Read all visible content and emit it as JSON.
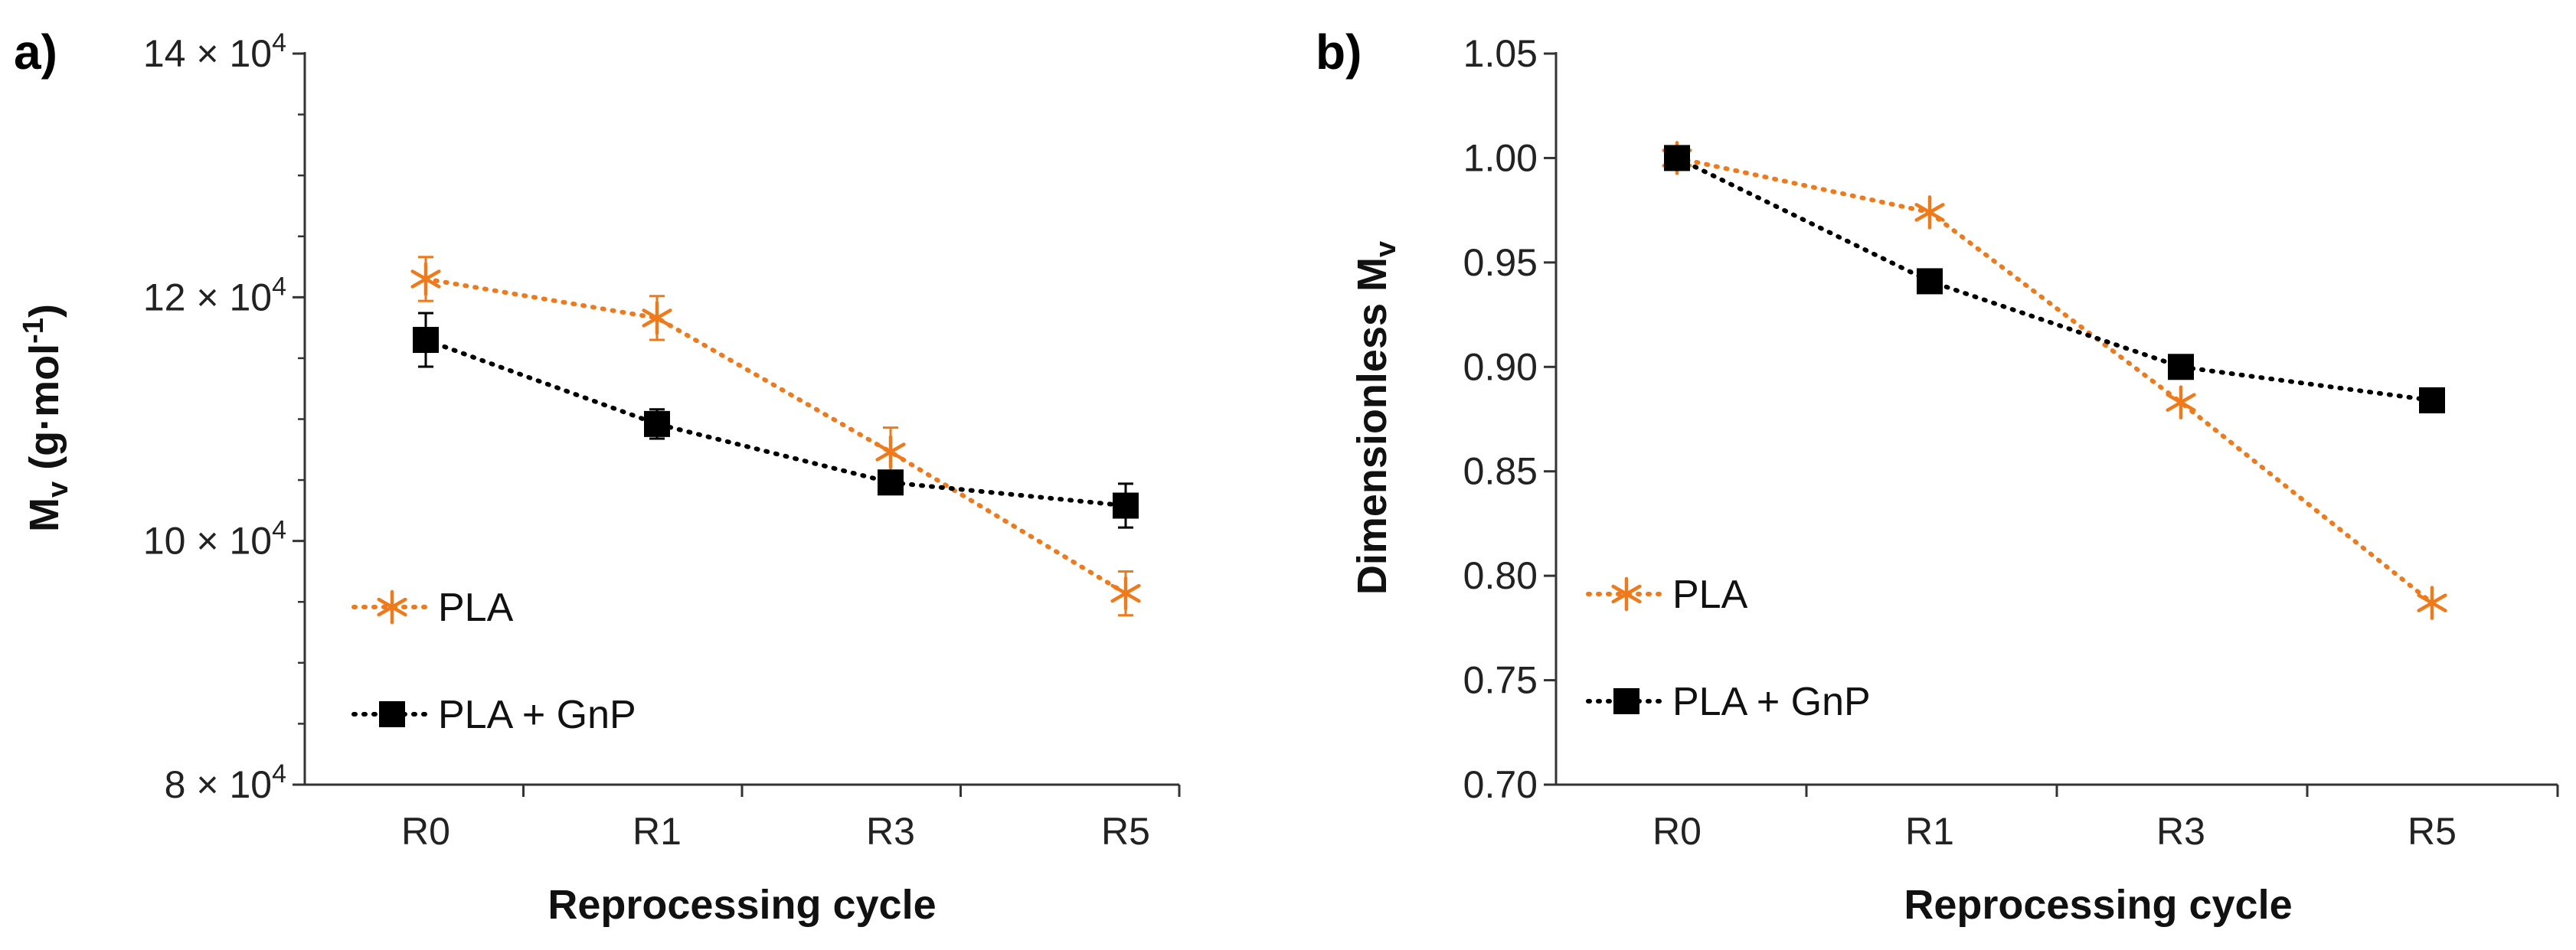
{
  "chart_data": [
    {
      "panel": "a)",
      "type": "line",
      "categories": [
        "R0",
        "R1",
        "R3",
        "R5"
      ],
      "xlabel": "Reprocessing cycle",
      "ylabel": "Mv (g·mol-1)",
      "ylabel_parts": {
        "main": "M",
        "sub": "v",
        "rest": " (g·mol",
        "sup": "-1",
        "close": ")"
      },
      "ylim": [
        80000,
        140000
      ],
      "yticks": [
        {
          "value": 80000,
          "mantissa": "8 × 10",
          "exp": "4"
        },
        {
          "value": 100000,
          "mantissa": "10 × 10",
          "exp": "4"
        },
        {
          "value": 120000,
          "mantissa": "12 × 10",
          "exp": "4"
        },
        {
          "value": 140000,
          "mantissa": "14 × 10",
          "exp": "4"
        }
      ],
      "minor_step": 5000,
      "series": [
        {
          "name": "PLA",
          "color": "#F07A1A",
          "marker": "asterisk",
          "values": [
            121500,
            118300,
            107300,
            95700
          ],
          "errors": [
            1800,
            1800,
            2000,
            1800
          ]
        },
        {
          "name": "PLA + GnP",
          "color": "#000000",
          "marker": "square",
          "values": [
            116500,
            109600,
            104800,
            102900
          ],
          "errors": [
            2200,
            1200,
            900,
            1800
          ]
        }
      ]
    },
    {
      "panel": "b)",
      "type": "line",
      "categories": [
        "R0",
        "R1",
        "R3",
        "R5"
      ],
      "xlabel": "Reprocessing cycle",
      "ylabel": "Dimensionless Mv",
      "ylabel_parts": {
        "main": "Dimensionless M",
        "sub": "v"
      },
      "ylim": [
        0.7,
        1.05
      ],
      "yticks": [
        {
          "value": 0.7,
          "label": "0.70"
        },
        {
          "value": 0.75,
          "label": "0.75"
        },
        {
          "value": 0.8,
          "label": "0.80"
        },
        {
          "value": 0.85,
          "label": "0.85"
        },
        {
          "value": 0.9,
          "label": "0.90"
        },
        {
          "value": 0.95,
          "label": "0.95"
        },
        {
          "value": 1.0,
          "label": "1.00"
        },
        {
          "value": 1.05,
          "label": "1.05"
        }
      ],
      "series": [
        {
          "name": "PLA",
          "color": "#F07A1A",
          "marker": "asterisk",
          "values": [
            1.0,
            0.974,
            0.883,
            0.787
          ]
        },
        {
          "name": "PLA + GnP",
          "color": "#000000",
          "marker": "square",
          "values": [
            1.0,
            0.941,
            0.9,
            0.884
          ]
        }
      ]
    }
  ]
}
